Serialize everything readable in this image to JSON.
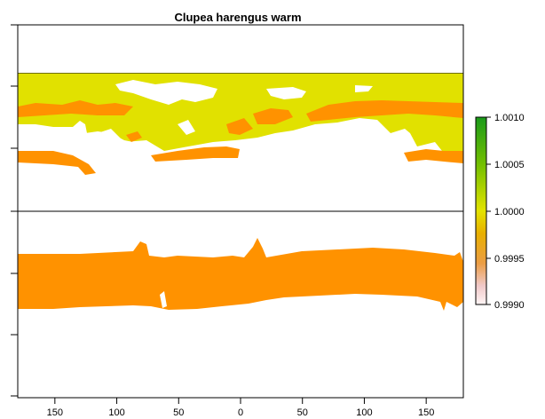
{
  "title": "Clupea harengus warm",
  "x_axis": {
    "ticks": [
      -150,
      -100,
      -50,
      0,
      50,
      100,
      150
    ],
    "tick_labels": [
      "150",
      "100",
      "50",
      "0",
      "50",
      "100",
      "150"
    ],
    "range": [
      -180,
      180
    ]
  },
  "legend": {
    "type": "continuous colorbar",
    "position": "right",
    "range": [
      0.999,
      1.001
    ],
    "tick_labels": [
      "1.0010",
      "1.0005",
      "1.0000",
      "0.9995",
      "0.9990"
    ],
    "gradient_colors": [
      "#1a9a1a",
      "#6abb00",
      "#e3e300",
      "#e8a200",
      "#f0c9c9",
      "#ffffff"
    ]
  },
  "colors": {
    "northern_band": "#e1e100",
    "southern_band": "#ff9200",
    "orange_edge": "#ff9200",
    "background": "#ffffff",
    "axes": "#000000"
  },
  "map_layers": {
    "northern_panel": "yellow suitability band with orange southern edge",
    "southern_panel": "orange suitability band"
  }
}
